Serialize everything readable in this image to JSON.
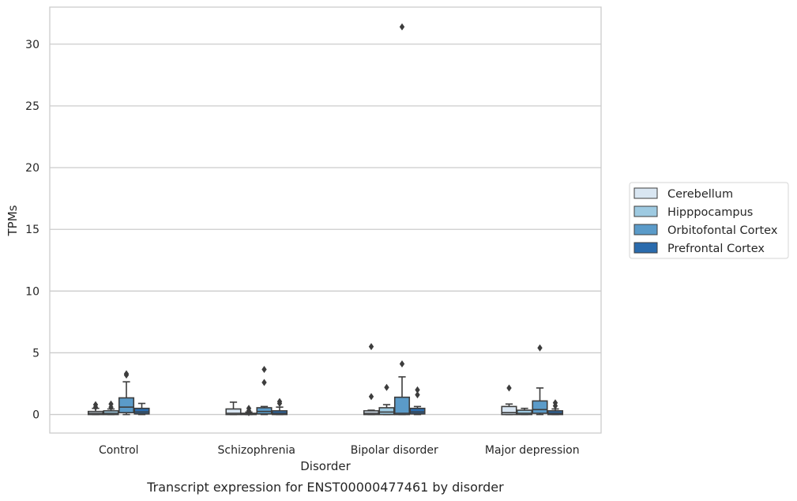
{
  "caption": "Transcript expression for ENST00000477461 by disorder",
  "chart_data": {
    "type": "box",
    "xlabel": "Disorder",
    "ylabel": "TPMs",
    "ylim": [
      -1.5,
      33
    ],
    "yticks": [
      0,
      5,
      10,
      15,
      20,
      25,
      30
    ],
    "grid": "horizontal",
    "legend_position": "right",
    "categories": [
      "Control",
      "Schizophrenia",
      "Bipolar disorder",
      "Major depression"
    ],
    "series": [
      {
        "name": "Cerebellum",
        "color": "#d9e6f2",
        "boxes": [
          {
            "whislo": 0,
            "q1": 0,
            "med": 0.1,
            "q3": 0.25,
            "whishi": 0.5,
            "fliers": [
              0.8,
              0.6
            ]
          },
          {
            "whislo": 0,
            "q1": 0,
            "med": 0.1,
            "q3": 0.45,
            "whishi": 1.0,
            "fliers": []
          },
          {
            "whislo": 0,
            "q1": 0,
            "med": 0.1,
            "q3": 0.3,
            "whishi": 0.35,
            "fliers": [
              5.5,
              1.45
            ]
          },
          {
            "whislo": 0,
            "q1": 0,
            "med": 0.15,
            "q3": 0.65,
            "whishi": 0.85,
            "fliers": [
              2.15
            ]
          }
        ]
      },
      {
        "name": "Hipppocampus",
        "color": "#9ecae1",
        "boxes": [
          {
            "whislo": 0,
            "q1": 0,
            "med": 0.1,
            "q3": 0.3,
            "whishi": 0.45,
            "fliers": [
              0.85,
              0.6
            ]
          },
          {
            "whislo": 0,
            "q1": 0,
            "med": 0.03,
            "q3": 0.1,
            "whishi": 0.2,
            "fliers": [
              0.5,
              0.3,
              0.15
            ]
          },
          {
            "whislo": 0,
            "q1": 0,
            "med": 0.2,
            "q3": 0.55,
            "whishi": 0.8,
            "fliers": [
              2.2
            ]
          },
          {
            "whislo": 0,
            "q1": 0,
            "med": 0.1,
            "q3": 0.35,
            "whishi": 0.5,
            "fliers": []
          }
        ]
      },
      {
        "name": "Orbitofontal Cortex",
        "color": "#5b9bc9",
        "boxes": [
          {
            "whislo": 0,
            "q1": 0.15,
            "med": 0.6,
            "q3": 1.35,
            "whishi": 2.65,
            "fliers": [
              3.3,
              3.2
            ]
          },
          {
            "whislo": 0,
            "q1": 0.05,
            "med": 0.25,
            "q3": 0.55,
            "whishi": 0.65,
            "fliers": [
              3.65,
              2.6
            ]
          },
          {
            "whislo": 0,
            "q1": 0,
            "med": 0.1,
            "q3": 1.4,
            "whishi": 3.05,
            "fliers": [
              31.4,
              4.1
            ]
          },
          {
            "whislo": 0,
            "q1": 0.1,
            "med": 0.4,
            "q3": 1.1,
            "whishi": 2.15,
            "fliers": [
              5.4
            ]
          }
        ]
      },
      {
        "name": "Prefrontal Cortex",
        "color": "#2a6bad",
        "boxes": [
          {
            "whislo": 0,
            "q1": 0.05,
            "med": 0.2,
            "q3": 0.5,
            "whishi": 0.9,
            "fliers": []
          },
          {
            "whislo": 0,
            "q1": 0,
            "med": 0.1,
            "q3": 0.3,
            "whishi": 0.6,
            "fliers": [
              1.05,
              0.9
            ]
          },
          {
            "whislo": 0,
            "q1": 0.05,
            "med": 0.2,
            "q3": 0.5,
            "whishi": 0.65,
            "fliers": [
              2.0,
              1.6
            ]
          },
          {
            "whislo": 0,
            "q1": 0,
            "med": 0.1,
            "q3": 0.3,
            "whishi": 0.45,
            "fliers": [
              0.95,
              0.7
            ]
          }
        ]
      }
    ]
  }
}
